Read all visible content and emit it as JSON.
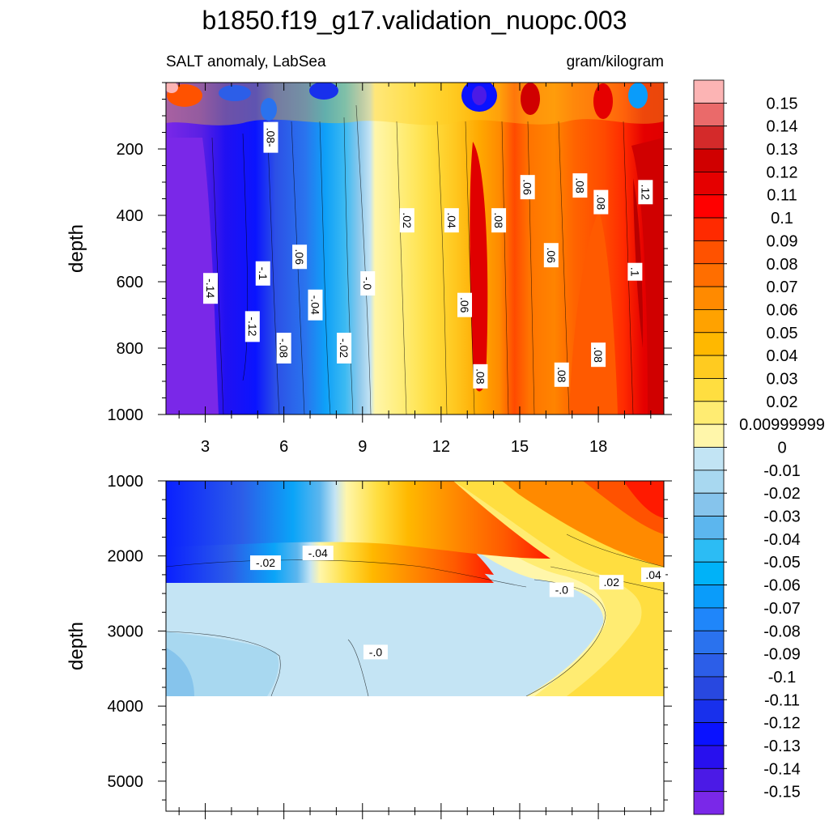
{
  "chart_data": {
    "type": "heatmap",
    "title": "b1850.f19_g17.validation_nuopc.003",
    "subtitle_left": "SALT anomaly, LabSea",
    "subtitle_right": "gram/kilogram",
    "x_ticks": [
      "3",
      "6",
      "9",
      "12",
      "15",
      "18"
    ],
    "x_tick_values": [
      3,
      6,
      9,
      12,
      15,
      18
    ],
    "xlim": [
      1.5,
      20.5
    ],
    "panels": [
      {
        "name": "upper",
        "ylabel": "depth",
        "ylim": [
          0,
          1000
        ],
        "y_ticks": [
          "200",
          "400",
          "600",
          "800",
          "1000"
        ],
        "y_tick_values": [
          200,
          400,
          600,
          800,
          1000
        ],
        "contour_labels": [
          {
            "text": ".08-",
            "x": 5.5,
            "y": 165
          },
          {
            "text": "-.14",
            "x": 3.2,
            "y": 620
          },
          {
            "text": "-.1",
            "x": 5.2,
            "y": 575
          },
          {
            "text": "-.12",
            "x": 4.8,
            "y": 735
          },
          {
            "text": ".06",
            "x": 6.6,
            "y": 525
          },
          {
            "text": "-.04",
            "x": 7.2,
            "y": 670
          },
          {
            "text": "-.08",
            "x": 6.0,
            "y": 800
          },
          {
            "text": "-.02",
            "x": 8.3,
            "y": 800
          },
          {
            "text": "-.0",
            "x": 9.2,
            "y": 605
          },
          {
            "text": ".02",
            "x": 10.7,
            "y": 415
          },
          {
            "text": ".04",
            "x": 12.4,
            "y": 415
          },
          {
            "text": ".06",
            "x": 12.9,
            "y": 670
          },
          {
            "text": ".08",
            "x": 14.2,
            "y": 415
          },
          {
            "text": ".06",
            "x": 15.3,
            "y": 315
          },
          {
            "text": ".08",
            "x": 13.5,
            "y": 885
          },
          {
            "text": ".06",
            "x": 16.2,
            "y": 520
          },
          {
            "text": ".08",
            "x": 17.3,
            "y": 310
          },
          {
            "text": ".08",
            "x": 18.1,
            "y": 360
          },
          {
            "text": ".12",
            "x": 19.8,
            "y": 330
          },
          {
            "text": ".1",
            "x": 19.4,
            "y": 570
          },
          {
            "text": ".08",
            "x": 18.0,
            "y": 820
          },
          {
            "text": ".08",
            "x": 16.6,
            "y": 880
          }
        ]
      },
      {
        "name": "lower",
        "ylabel": "depth",
        "ylim": [
          1000,
          5400
        ],
        "y_ticks": [
          "1000",
          "2000",
          "3000",
          "4000",
          "5000"
        ],
        "y_tick_values": [
          1000,
          2000,
          3000,
          4000,
          5000
        ],
        "data_bottom": 3860,
        "contour_labels": [
          {
            "text": "-.04",
            "x": 7.3,
            "y": 1960
          },
          {
            "text": "-.02",
            "x": 5.3,
            "y": 2090
          },
          {
            "text": "-.0",
            "x": 16.6,
            "y": 2450
          },
          {
            "text": "-.0",
            "x": 9.5,
            "y": 3280
          },
          {
            "text": ".02",
            "x": 18.5,
            "y": 2350
          },
          {
            "text": ".04",
            "x": 20.1,
            "y": 2250
          }
        ]
      }
    ],
    "colorbar": {
      "labels": [
        "0.15",
        "0.14",
        "0.13",
        "0.12",
        "0.11",
        "0.1",
        "0.09",
        "0.08",
        "0.07",
        "0.06",
        "0.05",
        "0.04",
        "0.03",
        "0.02",
        "0.00999999",
        "0",
        "-0.01",
        "-0.02",
        "-0.03",
        "-0.04",
        "-0.05",
        "-0.06",
        "-0.07",
        "-0.08",
        "-0.09",
        "-0.1",
        "-0.11",
        "-0.12",
        "-0.13",
        "-0.14",
        "-0.15"
      ],
      "colors_top_to_bottom": [
        "#fcb4b4",
        "#ea6a6a",
        "#d42a2a",
        "#d00000",
        "#e50000",
        "#ff0000",
        "#ff2a00",
        "#ff5200",
        "#ff6e00",
        "#ff8a00",
        "#ffa200",
        "#ffb800",
        "#ffcb20",
        "#ffde40",
        "#ffec72",
        "#fff6aa",
        "#c2e4f4",
        "#a8d8f0",
        "#86c4ec",
        "#5cb6ee",
        "#2cbcf4",
        "#00b2f8",
        "#0a9cfa",
        "#1f86fa",
        "#2a72ee",
        "#2c5ee8",
        "#2848e0",
        "#1830ec",
        "#0a12ff",
        "#2810ee",
        "#4b1ae6",
        "#7a28e8"
      ]
    }
  }
}
